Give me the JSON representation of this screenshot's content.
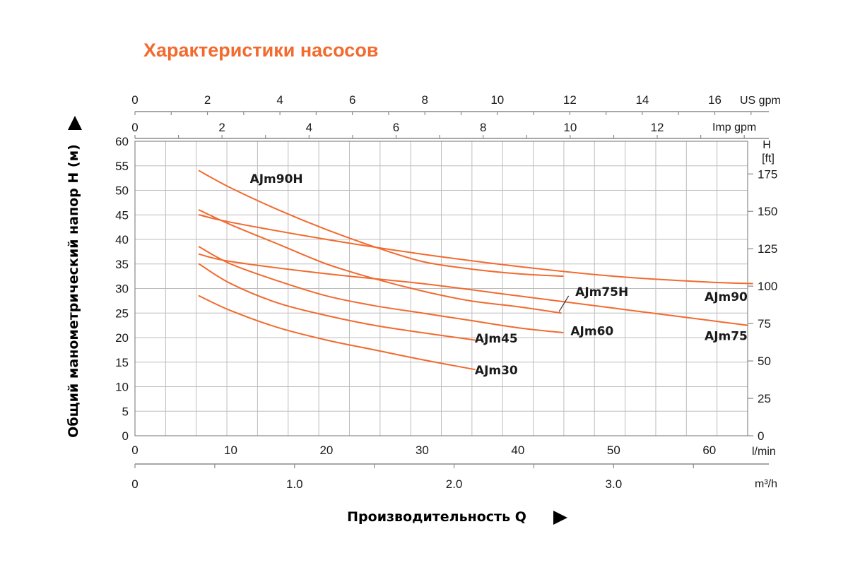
{
  "chart_data": {
    "type": "line",
    "title": "Характеристики насосов",
    "xlabel": "Производительность Q",
    "ylabel": "Общий манометрический напор H (м)",
    "x_unit": "l/min",
    "xlim": [
      0,
      64
    ],
    "ylim": [
      0,
      60
    ],
    "y_ticks": [
      "0",
      "5",
      "10",
      "15",
      "20",
      "25",
      "30",
      "35",
      "40",
      "45",
      "50",
      "55",
      "60"
    ],
    "x_ticks": [
      "0",
      "10",
      "20",
      "30",
      "40",
      "50",
      "60"
    ],
    "secondary_axes": {
      "us_gpm": {
        "unit": "US gpm",
        "ticks": [
          "0",
          "2",
          "4",
          "6",
          "8",
          "10",
          "12",
          "14",
          "16"
        ],
        "values": [
          0,
          2,
          4,
          6,
          8,
          10,
          12,
          14,
          16
        ]
      },
      "imp_gpm": {
        "unit": "Imp gpm",
        "ticks": [
          "0",
          "2",
          "4",
          "6",
          "8",
          "10",
          "12"
        ],
        "values": [
          0,
          2,
          4,
          6,
          8,
          10,
          12
        ]
      },
      "m3h": {
        "unit": "m³/h",
        "ticks": [
          "0",
          "1.0",
          "2.0",
          "3.0"
        ],
        "values": [
          0,
          1,
          2,
          3
        ]
      },
      "feet": {
        "unit_top": "H",
        "unit_bottom": "[ft]",
        "ticks": [
          "0",
          "25",
          "50",
          "75",
          "100",
          "125",
          "150",
          "175"
        ],
        "values": [
          0,
          25,
          50,
          75,
          100,
          125,
          150,
          175
        ]
      }
    },
    "grid": true,
    "color": "#f26a2e",
    "series": [
      {
        "name": "AJm90H",
        "x": [
          6.7,
          10,
          15,
          20,
          25,
          30,
          35,
          40,
          44.7
        ],
        "y": [
          54,
          50.5,
          46,
          42,
          38.5,
          35.5,
          34,
          33,
          32.5
        ]
      },
      {
        "name": "AJm90",
        "x": [
          6.7,
          10,
          20,
          30,
          40,
          50,
          60,
          64.5
        ],
        "y": [
          45,
          43.5,
          40,
          37,
          34.5,
          32.5,
          31.3,
          31
        ]
      },
      {
        "name": "AJm75H",
        "x": [
          6.7,
          10,
          15,
          20,
          25,
          30,
          35,
          40,
          44.5
        ],
        "y": [
          46,
          43,
          39,
          35,
          32,
          29.5,
          27.5,
          26.3,
          25
        ]
      },
      {
        "name": "AJm75",
        "x": [
          6.7,
          10,
          20,
          30,
          40,
          50,
          60,
          64
        ],
        "y": [
          37,
          35.5,
          33,
          31,
          28.5,
          26,
          23.5,
          22.5
        ]
      },
      {
        "name": "AJm60",
        "x": [
          6.7,
          10,
          15,
          20,
          25,
          30,
          35,
          40,
          44.7
        ],
        "y": [
          38.5,
          35,
          31.5,
          28.5,
          26.5,
          25,
          23.5,
          22,
          21
        ]
      },
      {
        "name": "AJm45",
        "x": [
          6.7,
          10,
          15,
          20,
          25,
          30,
          35.5
        ],
        "y": [
          35,
          31,
          27,
          24.5,
          22.5,
          21,
          19.5
        ]
      },
      {
        "name": "AJm30",
        "x": [
          6.7,
          10,
          15,
          20,
          25,
          30,
          35.5
        ],
        "y": [
          28.5,
          25.5,
          22,
          19.5,
          17.5,
          15.5,
          13.5
        ]
      }
    ],
    "labels": [
      {
        "text": "AJm90H",
        "x": 12,
        "y": 51.5
      },
      {
        "text": "AJm90",
        "x": 59.5,
        "y": 27.5
      },
      {
        "text": "AJm75H",
        "x": 46,
        "y": 28.5
      },
      {
        "text": "AJm75",
        "x": 59.5,
        "y": 19.5
      },
      {
        "text": "AJm60",
        "x": 45.5,
        "y": 20.5
      },
      {
        "text": "AJm45",
        "x": 35.5,
        "y": 19
      },
      {
        "text": "AJm30",
        "x": 35.5,
        "y": 12.5
      }
    ]
  }
}
